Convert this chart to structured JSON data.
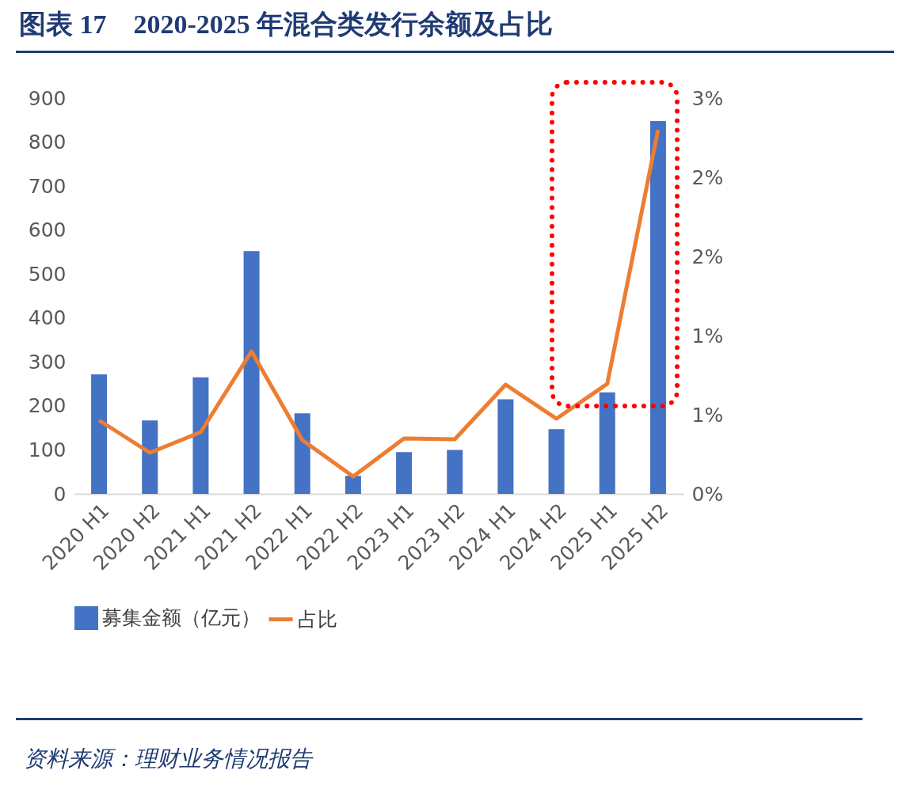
{
  "chart_data": {
    "type": "bar",
    "title": "图表 17　2020-2025 年混合类发行余额及占比",
    "categories": [
      "2020 H1",
      "2020 H2",
      "2021 H1",
      "2021 H2",
      "2022 H1",
      "2022 H2",
      "2023 H1",
      "2023 H2",
      "2024 H1",
      "2024 H2",
      "2025 H1",
      "2025 H2"
    ],
    "series": [
      {
        "name": "募集金额（亿元）",
        "color": "#4472c4",
        "values": [
          272,
          167,
          265,
          552,
          183,
          41,
          95,
          100,
          215,
          147,
          231,
          848
        ]
      },
      {
        "name": "占比",
        "type": "line",
        "axis": "y2",
        "color": "#ed7d31",
        "values": [
          0.465,
          0.26,
          0.39,
          0.9,
          0.34,
          0.11,
          0.35,
          0.345,
          0.69,
          0.475,
          0.695,
          2.3
        ]
      }
    ],
    "ylim": [
      0,
      900
    ],
    "yticks": [
      0,
      100,
      200,
      300,
      400,
      500,
      600,
      700,
      800,
      900
    ],
    "y2lim": [
      0,
      2.5
    ],
    "y2ticks": [
      {
        "value": 0,
        "label": "0%"
      },
      {
        "value": 0.5,
        "label": "1%"
      },
      {
        "value": 1,
        "label": "1%"
      },
      {
        "value": 1.5,
        "label": "2%"
      },
      {
        "value": 2,
        "label": "2%"
      },
      {
        "value": 2.5,
        "label": "3%"
      }
    ],
    "legend": "bottom",
    "grid": false,
    "annotations": [
      "资料来源：理财业务情况报告"
    ]
  }
}
